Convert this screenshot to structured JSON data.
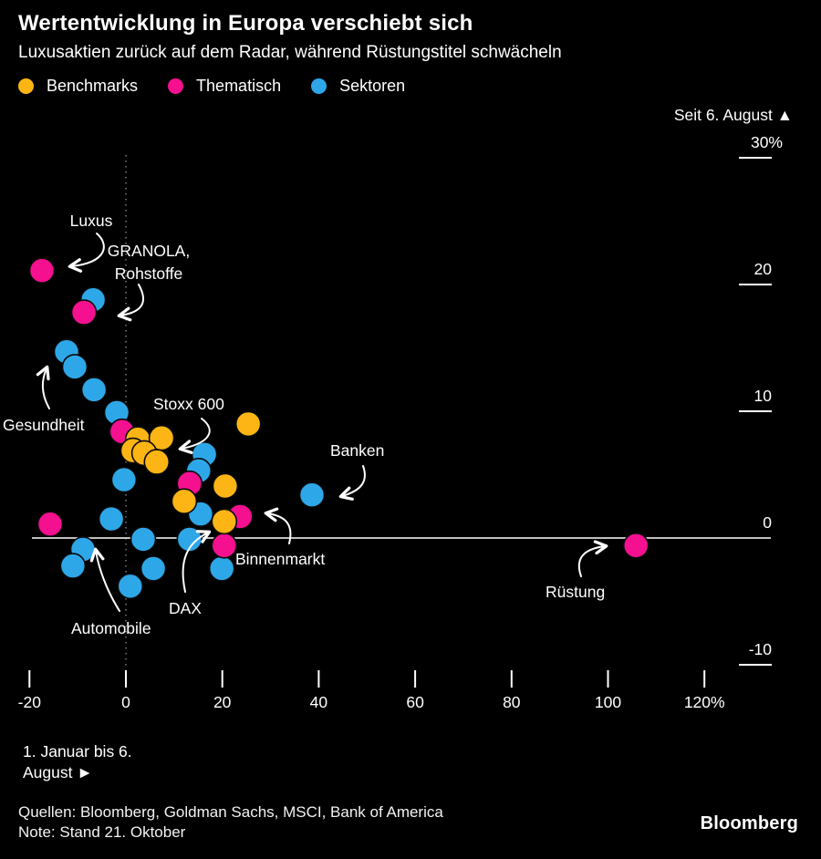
{
  "header": {
    "title": "Wertentwicklung in Europa verschiebt sich",
    "subtitle": "Luxusaktien zurück auf dem Radar, während Rüstungstitel schwächeln"
  },
  "legend": [
    {
      "label": "Benchmarks",
      "color": "#fcb514"
    },
    {
      "label": "Thematisch",
      "color": "#f5108f"
    },
    {
      "label": "Sektoren",
      "color": "#2ea7e9"
    }
  ],
  "colors": {
    "background": "#000000",
    "text": "#ffffff",
    "axis": "#ffffff",
    "dashed_line": "#999999"
  },
  "axis_note_right": "Seit 6. August ▲",
  "axis_note_bottom": [
    "1. Januar bis 6.",
    "August ►"
  ],
  "footer": {
    "sources": "Quellen: Bloomberg, Goldman Sachs, MSCI, Bank of America",
    "note": "Note: Stand 21. Oktober",
    "logo": "Bloomberg"
  },
  "chart_data": {
    "type": "scatter",
    "title": "Wertentwicklung in Europa verschiebt sich",
    "xlabel": "1. Januar bis 6. August",
    "ylabel": "Seit 6. August",
    "xlim": [
      -25,
      135
    ],
    "ylim": [
      -13,
      32
    ],
    "grid": false,
    "x_ticks": [
      -20,
      0,
      20,
      40,
      60,
      80,
      100,
      120
    ],
    "x_tick_labels": [
      "-20",
      "0",
      "20",
      "40",
      "60",
      "80",
      "100",
      "120%"
    ],
    "y_ticks": [
      30,
      20,
      10,
      0,
      -10
    ],
    "y_tick_labels": [
      "30%",
      "20",
      "10",
      "0",
      "-10"
    ],
    "legend_position": "top-left",
    "series": [
      {
        "name": "Benchmarks",
        "color": "#fcb514",
        "points": [
          {
            "x": 25.4,
            "y": 9.0
          },
          {
            "x": 2.5,
            "y": 7.8
          },
          {
            "x": 7.4,
            "y": 7.9
          },
          {
            "x": 1.5,
            "y": 6.9
          },
          {
            "x": 3.8,
            "y": 6.7
          },
          {
            "x": 6.4,
            "y": 6.0
          },
          {
            "x": 20.6,
            "y": 4.1
          },
          {
            "x": 12.1,
            "y": 2.9
          },
          {
            "x": 20.4,
            "y": 1.3
          }
        ]
      },
      {
        "name": "Thematisch",
        "color": "#f5108f",
        "points": [
          {
            "x": -17.4,
            "y": 21.1
          },
          {
            "x": -8.7,
            "y": 17.8
          },
          {
            "x": -0.8,
            "y": 8.4
          },
          {
            "x": 13.2,
            "y": 4.3
          },
          {
            "x": 23.7,
            "y": 1.7
          },
          {
            "x": 20.4,
            "y": -0.6
          },
          {
            "x": -15.7,
            "y": 1.1
          },
          {
            "x": 105.8,
            "y": -0.6
          }
        ]
      },
      {
        "name": "Sektoren",
        "color": "#2ea7e9",
        "points": [
          {
            "x": -6.8,
            "y": 18.8
          },
          {
            "x": -12.3,
            "y": 14.7
          },
          {
            "x": -10.6,
            "y": 13.5
          },
          {
            "x": -6.6,
            "y": 11.7
          },
          {
            "x": -1.9,
            "y": 9.9
          },
          {
            "x": -0.4,
            "y": 4.6
          },
          {
            "x": -3.0,
            "y": 1.5
          },
          {
            "x": 3.6,
            "y": -0.1
          },
          {
            "x": -8.9,
            "y": -0.9
          },
          {
            "x": -11.0,
            "y": -2.2
          },
          {
            "x": 5.7,
            "y": -2.4
          },
          {
            "x": 0.9,
            "y": -3.8
          },
          {
            "x": 16.3,
            "y": 6.6
          },
          {
            "x": 15.1,
            "y": 5.3
          },
          {
            "x": 15.5,
            "y": 1.9
          },
          {
            "x": 13.2,
            "y": -0.1
          },
          {
            "x": 19.9,
            "y": -2.4
          },
          {
            "x": 38.6,
            "y": 3.4
          }
        ]
      }
    ],
    "annotations": [
      {
        "id": "luxus",
        "label": "Luxus",
        "target": {
          "x": -17.4,
          "y": 21.1
        }
      },
      {
        "id": "granola",
        "label": "GRANOLA,\nRohstoffe",
        "target": {
          "x": -8.7,
          "y": 17.8
        }
      },
      {
        "id": "gesundheit",
        "label": "Gesundheit",
        "target": {
          "x": -12.3,
          "y": 14.7
        }
      },
      {
        "id": "stoxx600",
        "label": "Stoxx 600",
        "target": {
          "x": 3.8,
          "y": 6.7
        }
      },
      {
        "id": "banken",
        "label": "Banken",
        "target": {
          "x": 38.6,
          "y": 3.4
        }
      },
      {
        "id": "binnenmarkt",
        "label": "Binnenmarkt",
        "target": {
          "x": 23.7,
          "y": 1.7
        }
      },
      {
        "id": "dax",
        "label": "DAX",
        "target": {
          "x": 20.4,
          "y": 1.3
        }
      },
      {
        "id": "automobile",
        "label": "Automobile",
        "target": {
          "x": -8.9,
          "y": -0.9
        }
      },
      {
        "id": "ruestung",
        "label": "Rüstung",
        "target": {
          "x": 105.8,
          "y": -0.6
        }
      }
    ]
  }
}
